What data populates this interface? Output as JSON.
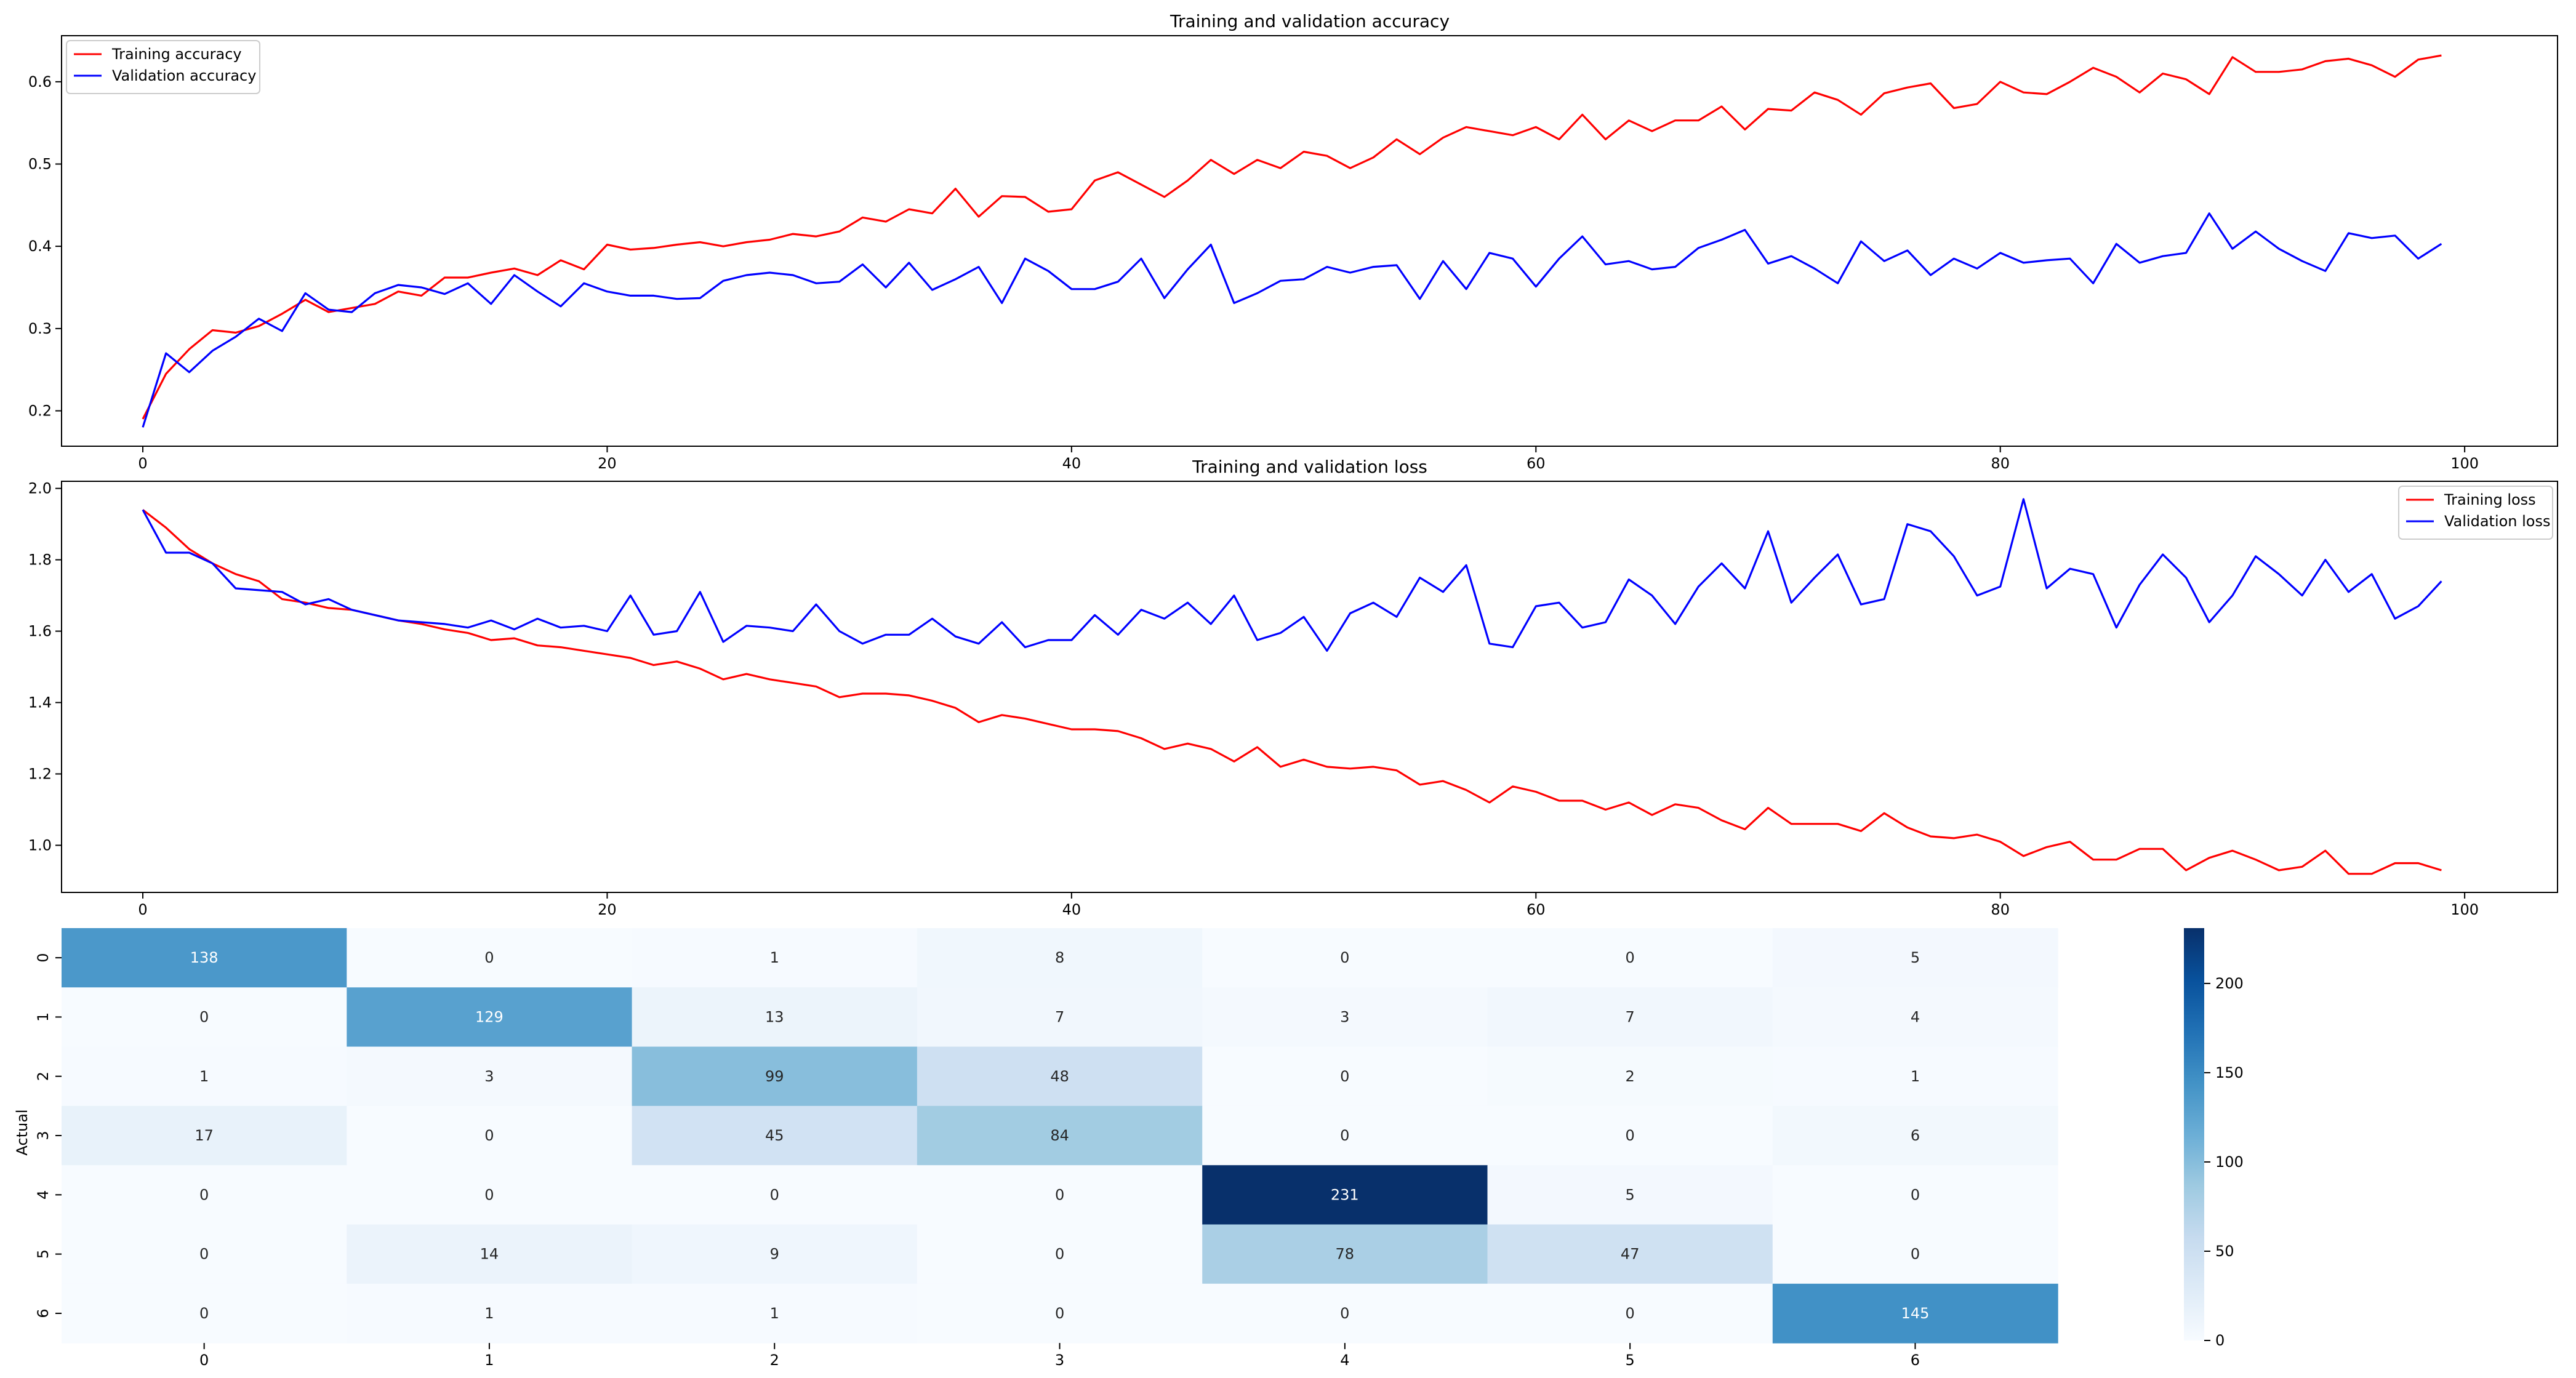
{
  "chart_data": [
    {
      "type": "line",
      "title": "Training and validation accuracy",
      "xlabel": "",
      "ylabel": "",
      "xlim": [
        -3.5,
        104
      ],
      "ylim": [
        0.157,
        0.656
      ],
      "xticks": [
        0,
        20,
        40,
        60,
        80,
        100
      ],
      "yticks": [
        0.2,
        0.3,
        0.4,
        0.5,
        0.6
      ],
      "legend_position": "top-left",
      "series": [
        {
          "name": "Training accuracy",
          "color": "#ff0000",
          "values": [
            0.19,
            0.245,
            0.275,
            0.298,
            0.295,
            0.303,
            0.318,
            0.335,
            0.32,
            0.325,
            0.33,
            0.345,
            0.34,
            0.362,
            0.362,
            0.368,
            0.373,
            0.365,
            0.383,
            0.372,
            0.402,
            0.396,
            0.398,
            0.402,
            0.405,
            0.4,
            0.405,
            0.408,
            0.415,
            0.412,
            0.418,
            0.435,
            0.43,
            0.445,
            0.44,
            0.47,
            0.436,
            0.461,
            0.46,
            0.442,
            0.445,
            0.48,
            0.49,
            0.475,
            0.46,
            0.48,
            0.505,
            0.488,
            0.505,
            0.495,
            0.515,
            0.51,
            0.495,
            0.508,
            0.53,
            0.512,
            0.532,
            0.545,
            0.54,
            0.535,
            0.545,
            0.53,
            0.56,
            0.53,
            0.553,
            0.54,
            0.553,
            0.553,
            0.57,
            0.542,
            0.567,
            0.565,
            0.587,
            0.578,
            0.56,
            0.586,
            0.593,
            0.598,
            0.568,
            0.573,
            0.6,
            0.587,
            0.585,
            0.6,
            0.617,
            0.606,
            0.587,
            0.61,
            0.603,
            0.585,
            0.63,
            0.612,
            0.612,
            0.615,
            0.625,
            0.628,
            0.62,
            0.606,
            0.627,
            0.632
          ]
        },
        {
          "name": "Validation accuracy",
          "color": "#0000ff",
          "values": [
            0.18,
            0.27,
            0.247,
            0.273,
            0.29,
            0.312,
            0.297,
            0.343,
            0.323,
            0.32,
            0.343,
            0.353,
            0.35,
            0.342,
            0.355,
            0.33,
            0.365,
            0.345,
            0.327,
            0.355,
            0.345,
            0.34,
            0.34,
            0.336,
            0.337,
            0.358,
            0.365,
            0.368,
            0.365,
            0.355,
            0.357,
            0.378,
            0.35,
            0.38,
            0.347,
            0.36,
            0.375,
            0.331,
            0.385,
            0.37,
            0.348,
            0.348,
            0.357,
            0.385,
            0.337,
            0.372,
            0.402,
            0.331,
            0.343,
            0.358,
            0.36,
            0.375,
            0.368,
            0.375,
            0.377,
            0.336,
            0.382,
            0.348,
            0.392,
            0.385,
            0.351,
            0.385,
            0.412,
            0.378,
            0.382,
            0.372,
            0.375,
            0.398,
            0.408,
            0.42,
            0.379,
            0.388,
            0.373,
            0.355,
            0.406,
            0.382,
            0.395,
            0.365,
            0.385,
            0.373,
            0.392,
            0.38,
            0.383,
            0.385,
            0.355,
            0.403,
            0.38,
            0.388,
            0.392,
            0.44,
            0.397,
            0.418,
            0.397,
            0.382,
            0.37,
            0.416,
            0.41,
            0.413,
            0.385,
            0.403
          ]
        }
      ]
    },
    {
      "type": "line",
      "title": "Training and validation loss",
      "xlabel": "",
      "ylabel": "",
      "xlim": [
        -3.5,
        104
      ],
      "ylim": [
        0.868,
        2.02
      ],
      "xticks": [
        0,
        20,
        40,
        60,
        80,
        100
      ],
      "yticks": [
        1.0,
        1.2,
        1.4,
        1.6,
        1.8,
        2.0
      ],
      "legend_position": "top-right",
      "series": [
        {
          "name": "Training loss",
          "color": "#ff0000",
          "values": [
            1.94,
            1.89,
            1.83,
            1.79,
            1.76,
            1.74,
            1.69,
            1.68,
            1.665,
            1.66,
            1.645,
            1.63,
            1.62,
            1.605,
            1.595,
            1.575,
            1.58,
            1.56,
            1.555,
            1.545,
            1.535,
            1.525,
            1.505,
            1.515,
            1.495,
            1.465,
            1.48,
            1.465,
            1.455,
            1.445,
            1.415,
            1.425,
            1.425,
            1.42,
            1.405,
            1.385,
            1.345,
            1.365,
            1.355,
            1.34,
            1.325,
            1.325,
            1.32,
            1.3,
            1.27,
            1.285,
            1.27,
            1.235,
            1.275,
            1.22,
            1.24,
            1.22,
            1.215,
            1.22,
            1.21,
            1.17,
            1.18,
            1.155,
            1.12,
            1.165,
            1.15,
            1.125,
            1.125,
            1.1,
            1.12,
            1.085,
            1.115,
            1.105,
            1.07,
            1.045,
            1.105,
            1.06,
            1.06,
            1.06,
            1.04,
            1.09,
            1.05,
            1.025,
            1.02,
            1.03,
            1.01,
            0.97,
            0.995,
            1.01,
            0.96,
            0.96,
            0.99,
            0.99,
            0.93,
            0.965,
            0.985,
            0.96,
            0.93,
            0.94,
            0.985,
            0.92,
            0.92,
            0.95,
            0.95,
            0.93
          ]
        },
        {
          "name": "Validation loss",
          "color": "#0000ff",
          "values": [
            1.94,
            1.82,
            1.82,
            1.79,
            1.72,
            1.715,
            1.71,
            1.675,
            1.69,
            1.66,
            1.645,
            1.63,
            1.625,
            1.62,
            1.61,
            1.63,
            1.605,
            1.635,
            1.61,
            1.615,
            1.6,
            1.7,
            1.59,
            1.6,
            1.71,
            1.57,
            1.615,
            1.61,
            1.6,
            1.675,
            1.6,
            1.565,
            1.59,
            1.59,
            1.635,
            1.585,
            1.565,
            1.625,
            1.555,
            1.575,
            1.575,
            1.645,
            1.59,
            1.66,
            1.635,
            1.68,
            1.62,
            1.7,
            1.575,
            1.595,
            1.64,
            1.545,
            1.65,
            1.68,
            1.64,
            1.75,
            1.71,
            1.785,
            1.565,
            1.555,
            1.67,
            1.68,
            1.61,
            1.625,
            1.745,
            1.7,
            1.62,
            1.725,
            1.79,
            1.72,
            1.88,
            1.68,
            1.75,
            1.815,
            1.675,
            1.69,
            1.9,
            1.88,
            1.81,
            1.7,
            1.725,
            1.97,
            1.72,
            1.775,
            1.76,
            1.61,
            1.73,
            1.815,
            1.75,
            1.625,
            1.7,
            1.81,
            1.76,
            1.7,
            1.8,
            1.71,
            1.76,
            1.635,
            1.67,
            1.74
          ]
        }
      ]
    },
    {
      "type": "heatmap",
      "title": "",
      "xlabel": "",
      "ylabel": "Actual",
      "x_categories": [
        "0",
        "1",
        "2",
        "3",
        "4",
        "5",
        "6"
      ],
      "y_categories": [
        "0",
        "1",
        "2",
        "3",
        "4",
        "5",
        "6"
      ],
      "matrix": [
        [
          138,
          0,
          1,
          8,
          0,
          0,
          5
        ],
        [
          0,
          129,
          13,
          7,
          3,
          7,
          4
        ],
        [
          1,
          3,
          99,
          48,
          0,
          2,
          1
        ],
        [
          17,
          0,
          45,
          84,
          0,
          0,
          6
        ],
        [
          0,
          0,
          0,
          0,
          231,
          5,
          0
        ],
        [
          0,
          14,
          9,
          0,
          78,
          47,
          0
        ],
        [
          0,
          1,
          1,
          0,
          0,
          0,
          145
        ]
      ],
      "colormap": "Blues",
      "vmin": 0,
      "vmax": 231,
      "colorbar_ticks": [
        0,
        50,
        100,
        150,
        200
      ]
    }
  ]
}
